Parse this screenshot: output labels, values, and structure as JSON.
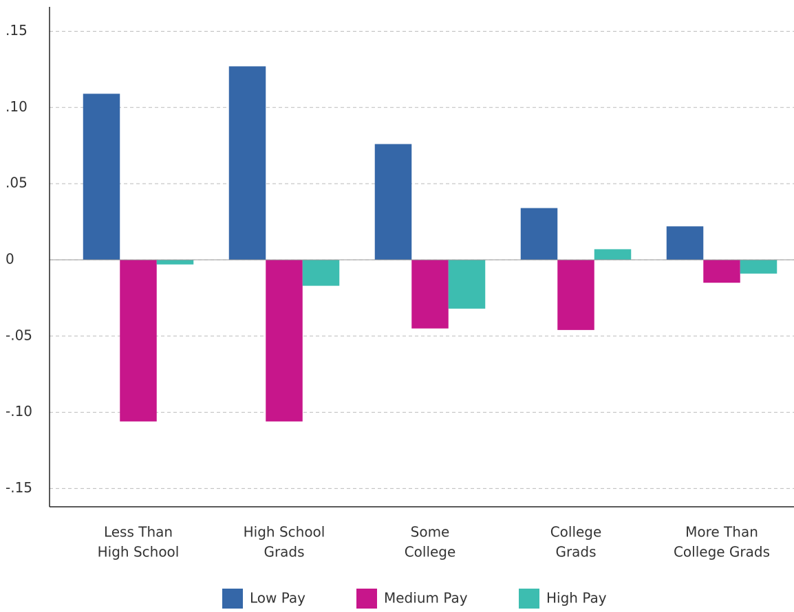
{
  "chart_data": {
    "type": "bar",
    "categories": [
      [
        "Less Than",
        "High School"
      ],
      [
        "High School",
        "Grads"
      ],
      [
        "Some",
        "College"
      ],
      [
        "College",
        "Grads"
      ],
      [
        "More Than",
        "College Grads"
      ]
    ],
    "series": [
      {
        "name": "Low Pay",
        "color": "#3567a8",
        "values": [
          0.109,
          0.127,
          0.076,
          0.034,
          0.022
        ]
      },
      {
        "name": "Medium Pay",
        "color": "#c7168b",
        "values": [
          -0.106,
          -0.106,
          -0.045,
          -0.046,
          -0.015
        ]
      },
      {
        "name": "High Pay",
        "color": "#3dbdb0",
        "values": [
          -0.003,
          -0.017,
          -0.032,
          0.007,
          -0.009
        ]
      }
    ],
    "ylim": [
      -0.162,
      0.166
    ],
    "yticks": [
      {
        "value": 0.15,
        "label": ".15"
      },
      {
        "value": 0.1,
        "label": ".10"
      },
      {
        "value": 0.05,
        "label": ".05"
      },
      0,
      {
        "value": -0.05,
        "label": "-.05"
      },
      {
        "value": -0.1,
        "label": "-.10"
      },
      {
        "value": -0.15,
        "label": "-.15"
      }
    ],
    "grid": true,
    "legend": "bottom"
  }
}
